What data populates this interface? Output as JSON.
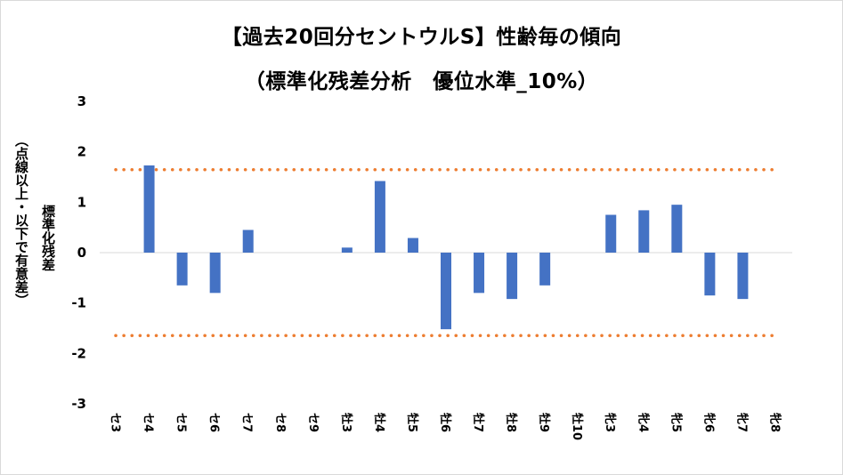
{
  "title_line1": "【過去20回分セントウルS】性齢毎の傾向",
  "title_line2": "（標準化残差分析　優位水準_10%）",
  "chart_data": {
    "type": "bar",
    "title": "【過去20回分セントウルS】性齢毎の傾向",
    "subtitle": "（標準化残差分析　優位水準_10%）",
    "ylabel": "標準化残差",
    "ylabel_note": "（点線以上・以下で有意差）",
    "ylim": [
      -3,
      3
    ],
    "yticks": [
      3,
      2,
      1,
      0,
      -1,
      -2,
      -3
    ],
    "categories": [
      "セ3",
      "セ4",
      "セ5",
      "セ6",
      "セ7",
      "セ8",
      "セ9",
      "牡3",
      "牡4",
      "牡5",
      "牡6",
      "牡7",
      "牡8",
      "牡9",
      "牡10",
      "牝3",
      "牝4",
      "牝5",
      "牝6",
      "牝7",
      "牝8"
    ],
    "values": [
      0,
      1.73,
      -0.65,
      -0.8,
      0.45,
      0,
      0,
      0.1,
      1.42,
      0.29,
      -1.52,
      -0.8,
      -0.92,
      -0.65,
      0,
      0.75,
      0.84,
      0.95,
      -0.85,
      -0.92,
      0
    ],
    "threshold_upper": 1.645,
    "threshold_lower": -1.645,
    "bar_color": "#4472c4",
    "threshold_color": "#ed7d31",
    "grid": false,
    "legend": "none"
  }
}
